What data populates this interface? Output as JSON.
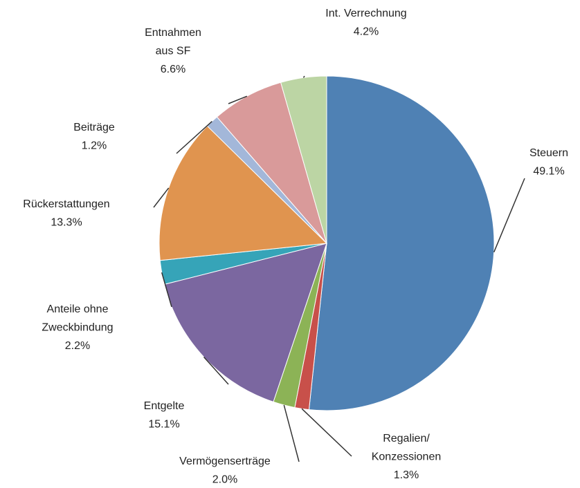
{
  "chart_data": {
    "type": "pie",
    "categories": [
      [
        "Steuern"
      ],
      [
        "Regalien/",
        "Konzessionen"
      ],
      [
        "Vermögenserträge"
      ],
      [
        "Entgelte"
      ],
      [
        "Anteile ohne",
        "Zweckbindung"
      ],
      [
        "Rückerstattungen"
      ],
      [
        "Beiträge"
      ],
      [
        "Entnahmen",
        "aus SF"
      ],
      [
        "Int. Verrechnung"
      ]
    ],
    "values": [
      49.1,
      1.3,
      2.0,
      15.1,
      2.2,
      13.3,
      1.2,
      6.6,
      4.2
    ],
    "value_labels": [
      "49.1%",
      "1.3%",
      "2.0%",
      "15.1%",
      "2.2%",
      "13.3%",
      "1.2%",
      "6.6%",
      "4.2%"
    ],
    "colors": [
      "#4f81b4",
      "#c8504a",
      "#8cb356",
      "#7b67a0",
      "#36a4b8",
      "#e0944f",
      "#a3b7d9",
      "#d99a9a",
      "#bcd5a4"
    ]
  }
}
